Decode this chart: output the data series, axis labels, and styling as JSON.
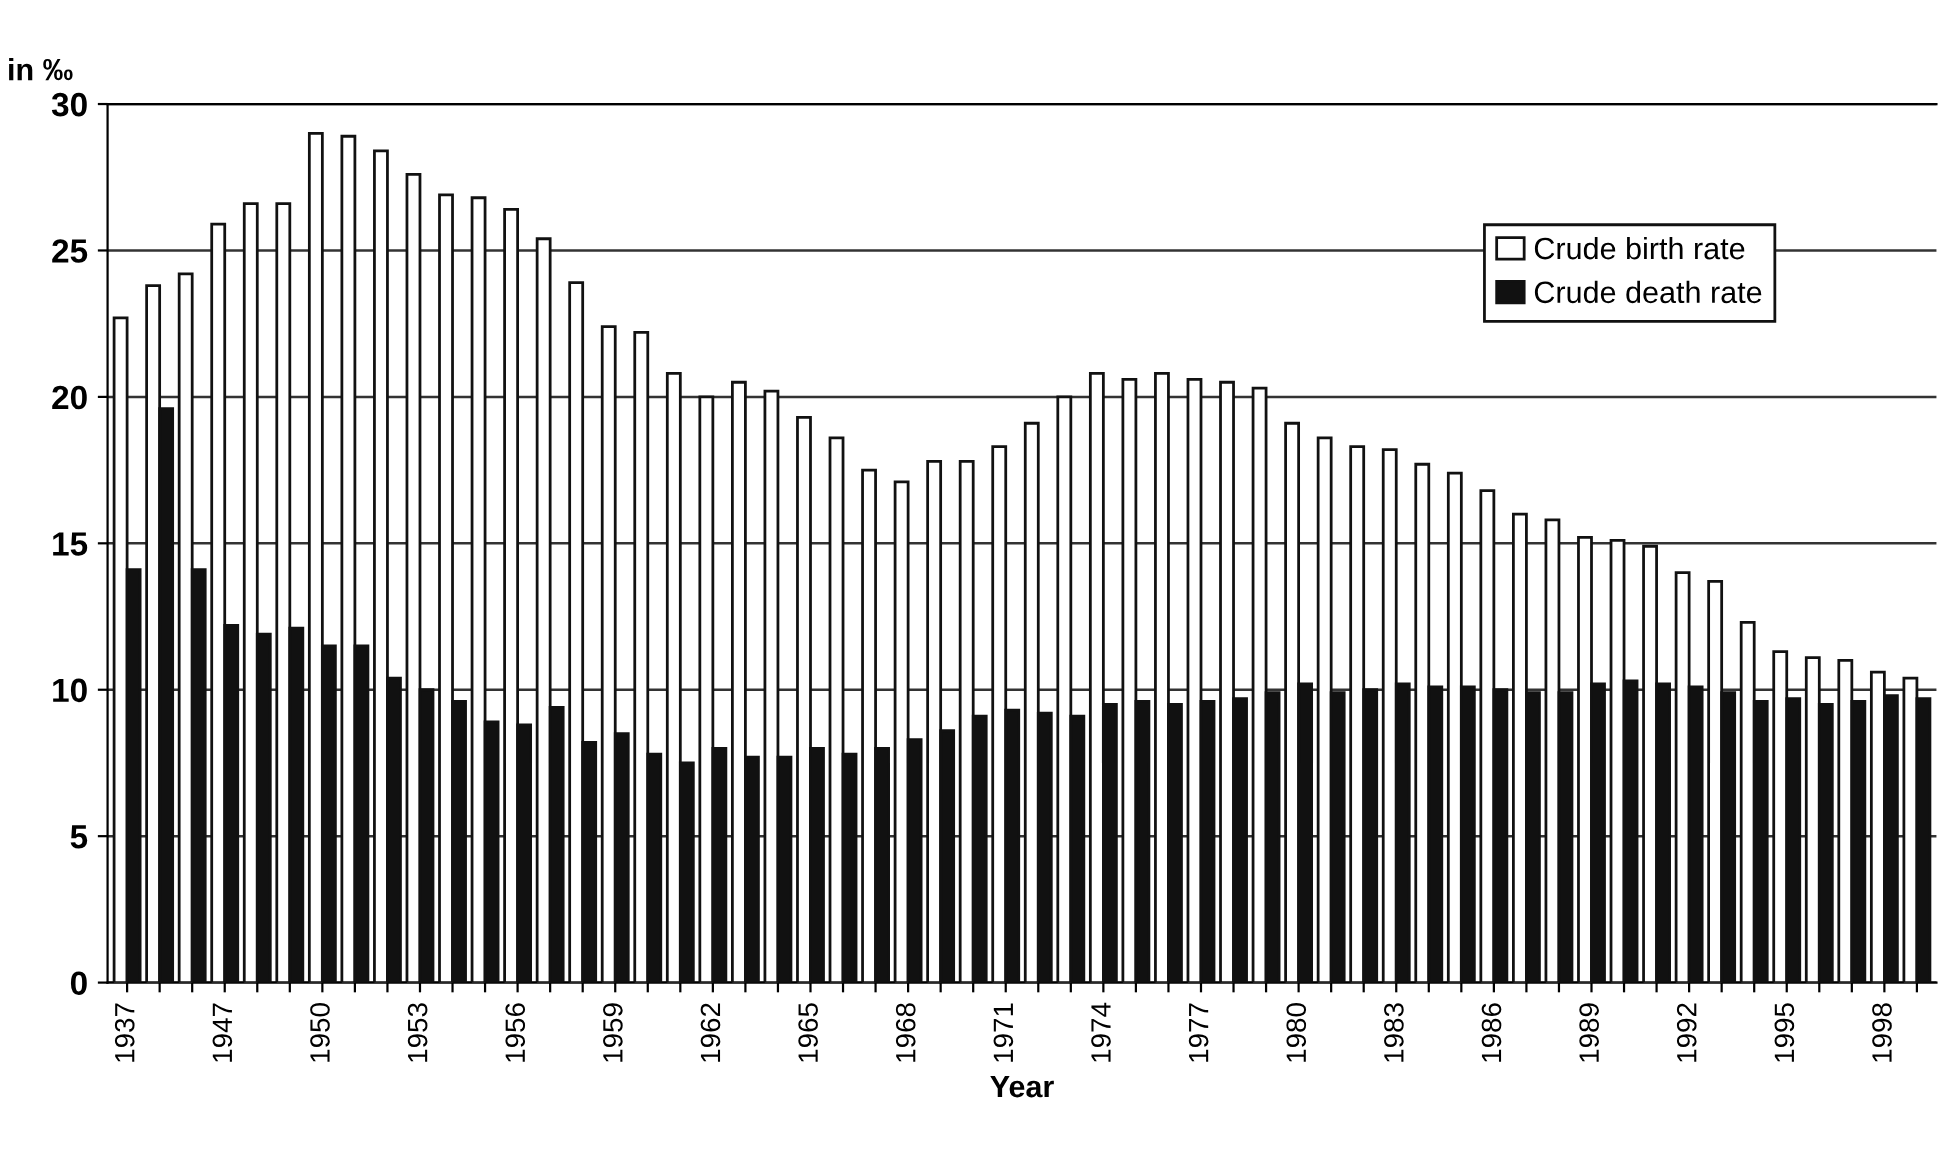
{
  "chart_data": {
    "type": "bar",
    "ylabel": "in ‰",
    "xlabel": "Year",
    "categories": [
      "1937",
      null,
      null,
      "1947",
      null,
      null,
      "1950",
      null,
      null,
      "1953",
      null,
      null,
      "1956",
      null,
      null,
      "1959",
      null,
      null,
      "1962",
      null,
      null,
      "1965",
      null,
      null,
      "1968",
      null,
      null,
      "1971",
      null,
      null,
      "1974",
      null,
      null,
      "1977",
      null,
      null,
      "1980",
      null,
      null,
      "1983",
      null,
      null,
      "1986",
      null,
      null,
      "1989",
      null,
      null,
      "1992",
      null,
      null,
      "1995",
      null,
      null,
      "1998",
      null
    ],
    "series": [
      {
        "name": "Crude birth rate",
        "color": "#ffffff",
        "values": [
          22.7,
          23.8,
          24.2,
          25.9,
          26.6,
          26.6,
          29.0,
          28.9,
          28.4,
          27.6,
          26.9,
          26.8,
          26.4,
          25.4,
          23.9,
          22.4,
          22.2,
          20.8,
          20.0,
          20.5,
          20.2,
          19.3,
          18.6,
          17.5,
          17.1,
          17.8,
          17.8,
          18.3,
          19.1,
          20.0,
          20.8,
          20.6,
          20.8,
          20.6,
          20.5,
          20.3,
          19.1,
          18.6,
          18.3,
          18.2,
          17.7,
          17.4,
          16.8,
          16.0,
          15.8,
          15.2,
          15.1,
          14.9,
          14.0,
          13.7,
          12.3,
          11.3,
          11.1,
          11.0,
          10.6,
          10.4
        ]
      },
      {
        "name": "Crude death rate",
        "color": "#111111",
        "values": [
          14.1,
          19.6,
          14.1,
          12.2,
          11.9,
          12.1,
          11.5,
          11.5,
          10.4,
          10.0,
          9.6,
          8.9,
          8.8,
          9.4,
          8.2,
          8.5,
          7.8,
          7.5,
          8.0,
          7.7,
          7.7,
          8.0,
          7.8,
          8.0,
          8.3,
          8.6,
          9.1,
          9.3,
          9.2,
          9.1,
          9.5,
          9.6,
          9.5,
          9.6,
          9.7,
          9.9,
          10.2,
          9.9,
          10.0,
          10.2,
          10.1,
          10.1,
          10.0,
          9.9,
          9.9,
          10.2,
          10.3,
          10.2,
          10.1,
          9.9,
          9.6,
          9.7,
          9.5,
          9.6,
          9.8,
          9.7
        ]
      }
    ],
    "ylim": [
      0,
      30
    ],
    "yticks": [
      0,
      5,
      10,
      15,
      20,
      25,
      30
    ],
    "grid": "y",
    "legend": "top right"
  }
}
